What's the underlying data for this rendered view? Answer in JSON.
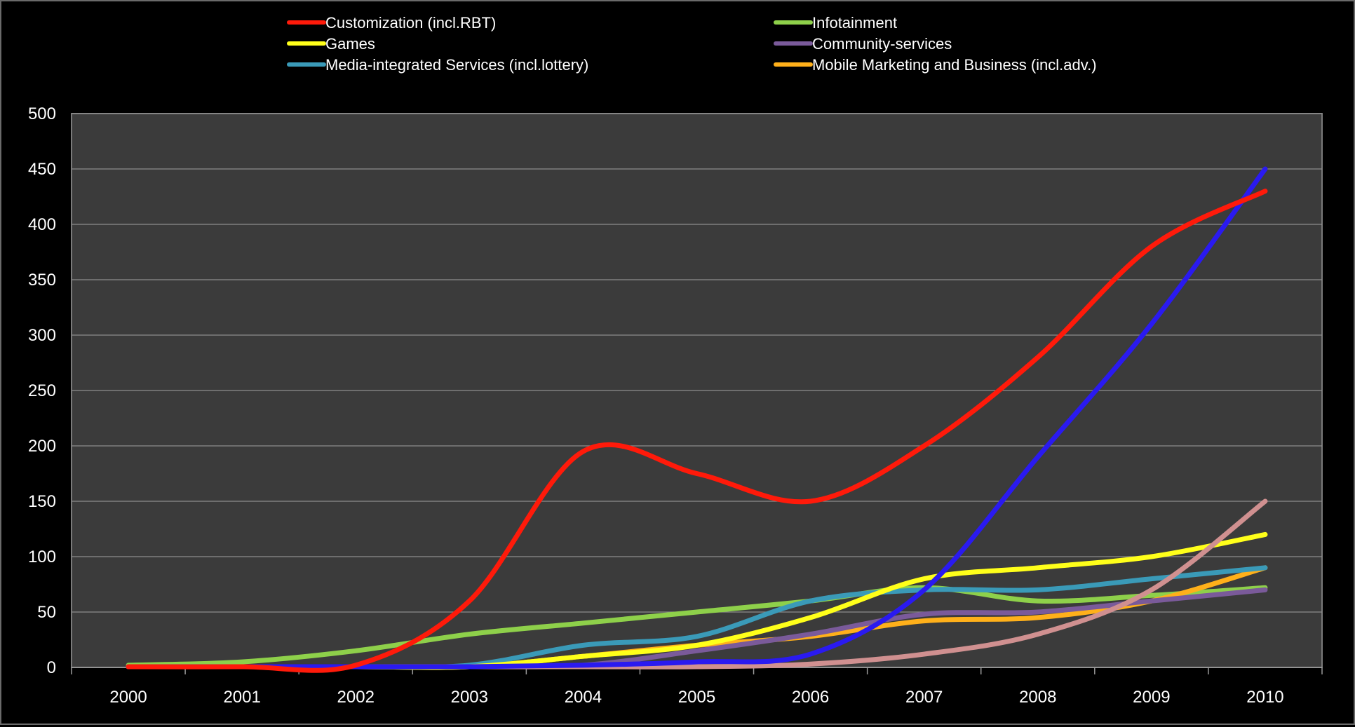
{
  "chart_data": {
    "type": "line",
    "title": "",
    "xlabel": "",
    "ylabel": "",
    "ylim": [
      0,
      500
    ],
    "yticks": [
      "0",
      "50",
      "100",
      "150",
      "200",
      "250",
      "300",
      "350",
      "400",
      "450",
      "500"
    ],
    "categories": [
      "2000",
      "2001",
      "2002",
      "2003",
      "2004",
      "2005",
      "2006",
      "2007",
      "2008",
      "2009",
      "2010"
    ],
    "grid": true,
    "legend_position": "top",
    "series": [
      {
        "name": "Customization (incl.RBT)",
        "color": "#ff1a0a",
        "values": [
          0,
          0,
          2,
          60,
          195,
          175,
          150,
          200,
          280,
          380,
          430
        ]
      },
      {
        "name": "Infotainment",
        "color": "#8ed04a",
        "values": [
          2,
          5,
          15,
          30,
          40,
          50,
          60,
          72,
          60,
          65,
          72
        ]
      },
      {
        "name": "Games",
        "color": "#ffff1a",
        "values": [
          0,
          0,
          0,
          0,
          10,
          20,
          45,
          80,
          90,
          100,
          120
        ]
      },
      {
        "name": "Community-services",
        "color": "#7a5a9a",
        "values": [
          0,
          0,
          0,
          0,
          2,
          15,
          30,
          48,
          50,
          60,
          70
        ]
      },
      {
        "name": "Media-integrated Services (incl.lottery)",
        "color": "#3a9ab8",
        "values": [
          0,
          0,
          0,
          2,
          20,
          28,
          60,
          70,
          70,
          80,
          90
        ]
      },
      {
        "name": "Mobile Marketing and Business (incl.adv.)",
        "color": "#ffb01a",
        "values": [
          0,
          0,
          0,
          0,
          10,
          20,
          28,
          42,
          45,
          60,
          90
        ]
      },
      {
        "color": "#2a1af0",
        "values": [
          0,
          0,
          0,
          0,
          2,
          5,
          12,
          70,
          190,
          310,
          450
        ]
      },
      {
        "color": "#d09090",
        "values": [
          0,
          0,
          0,
          0,
          0,
          0,
          3,
          12,
          30,
          70,
          150
        ]
      }
    ]
  }
}
